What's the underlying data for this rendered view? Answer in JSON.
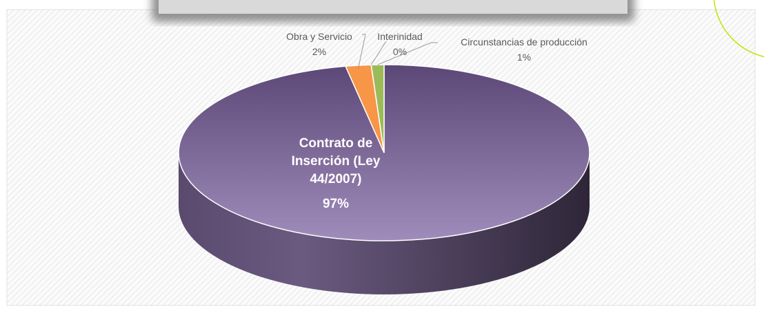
{
  "chart_data": {
    "type": "pie",
    "categories": [
      "Contrato de Inserción (Ley 44/2007)",
      "Obra y Servicio",
      "Interinidad",
      "Circunstancias de producción"
    ],
    "values": [
      97,
      2,
      0,
      1
    ],
    "value_labels": [
      "97%",
      "2%",
      "0%",
      "1%"
    ],
    "colors": [
      "#7f6a9c",
      "#f79646",
      "#a5a5a5",
      "#9bbb59"
    ]
  }
}
